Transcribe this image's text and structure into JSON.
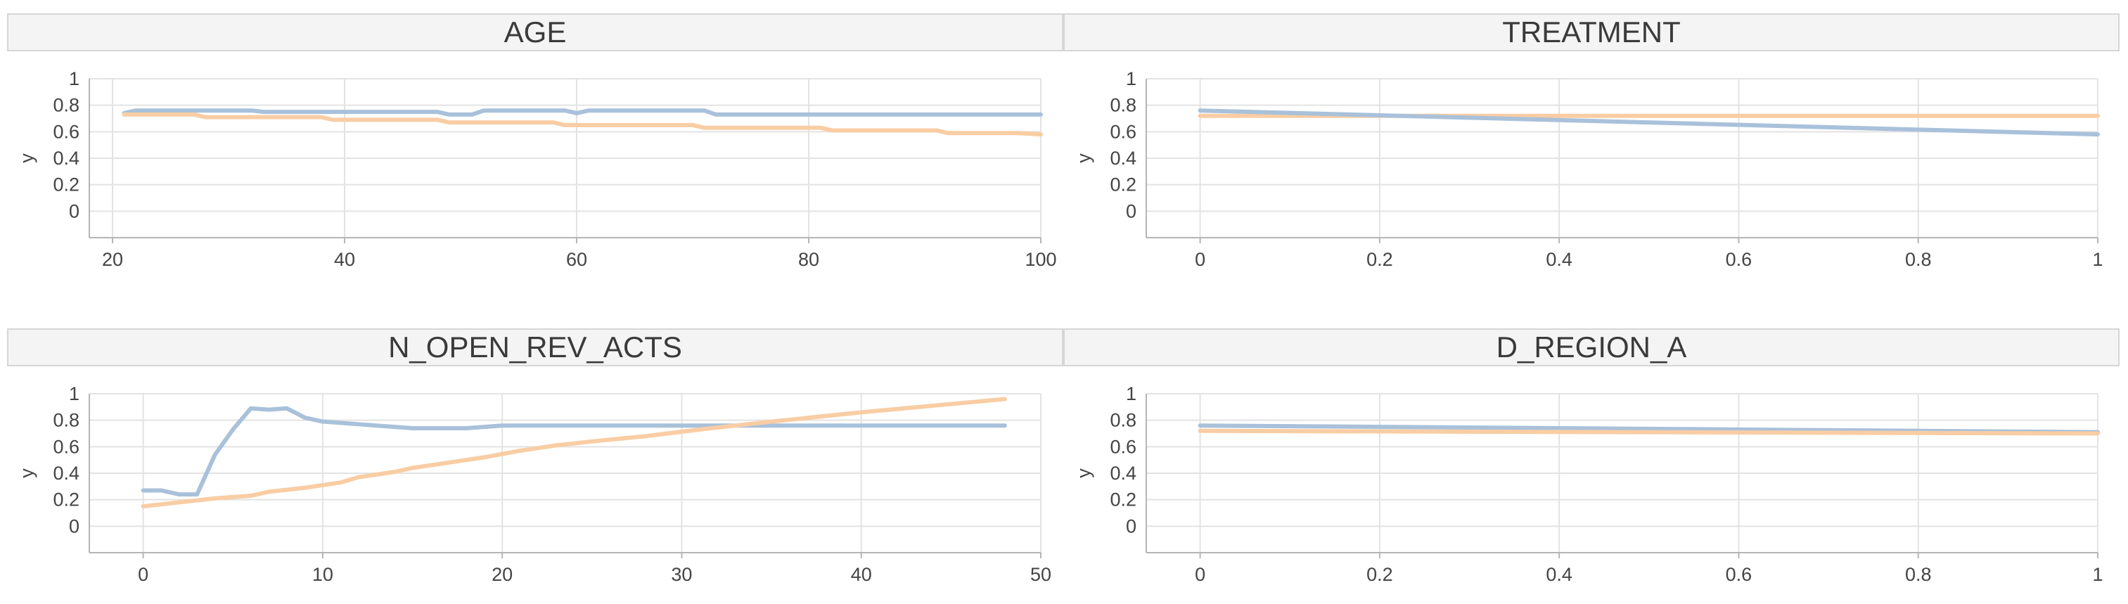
{
  "colors": {
    "series_blue": "#a9c1da",
    "series_orange": "#f9cda4",
    "title_bar_fill": "#f4f4f4",
    "title_bar_stroke": "#d6d6d6",
    "grid": "#e3e3e3",
    "axis": "#b5b5b5"
  },
  "chart_data": [
    {
      "type": "line",
      "title": "AGE",
      "xlabel": "",
      "ylabel": "y",
      "xlim": [
        18,
        100
      ],
      "ylim": [
        -0.2,
        1
      ],
      "xticks": [
        20,
        40,
        60,
        80,
        100
      ],
      "yticks": [
        0,
        0.2,
        0.4,
        0.6,
        0.8,
        1
      ],
      "grid": true,
      "series": [
        {
          "color": "#a9c1da",
          "x": [
            21,
            22,
            32,
            33,
            48,
            49,
            51,
            52,
            59,
            60,
            61,
            71,
            72,
            100
          ],
          "y": [
            0.74,
            0.76,
            0.76,
            0.75,
            0.75,
            0.73,
            0.73,
            0.76,
            0.76,
            0.74,
            0.76,
            0.76,
            0.73,
            0.73
          ]
        },
        {
          "color": "#f9cda4",
          "x": [
            21,
            27,
            28,
            38,
            39,
            48,
            49,
            58,
            59,
            70,
            71,
            81,
            82,
            91,
            92,
            98,
            100
          ],
          "y": [
            0.73,
            0.73,
            0.71,
            0.71,
            0.69,
            0.69,
            0.67,
            0.67,
            0.65,
            0.65,
            0.63,
            0.63,
            0.61,
            0.61,
            0.59,
            0.59,
            0.58
          ]
        }
      ]
    },
    {
      "type": "line",
      "title": "TREATMENT",
      "xlabel": "",
      "ylabel": "y",
      "xlim": [
        -0.06,
        1
      ],
      "ylim": [
        -0.2,
        1
      ],
      "xticks": [
        0,
        0.2,
        0.4,
        0.6,
        0.8,
        1
      ],
      "yticks": [
        0,
        0.2,
        0.4,
        0.6,
        0.8,
        1
      ],
      "grid": true,
      "series": [
        {
          "color": "#f9cda4",
          "x": [
            0,
            1
          ],
          "y": [
            0.72,
            0.72
          ]
        },
        {
          "color": "#a9c1da",
          "x": [
            0,
            1
          ],
          "y": [
            0.76,
            0.58
          ]
        }
      ]
    },
    {
      "type": "line",
      "title": "N_OPEN_REV_ACTS",
      "xlabel": "",
      "ylabel": "y",
      "xlim": [
        -3,
        50
      ],
      "ylim": [
        -0.2,
        1
      ],
      "xticks": [
        0,
        10,
        20,
        30,
        40,
        50
      ],
      "yticks": [
        0,
        0.2,
        0.4,
        0.6,
        0.8,
        1
      ],
      "grid": true,
      "series": [
        {
          "color": "#a9c1da",
          "x": [
            0,
            1,
            2,
            3,
            4,
            5,
            6,
            7,
            8,
            9,
            10,
            11,
            12,
            13,
            14,
            15,
            16,
            18,
            20,
            25,
            30,
            35,
            40,
            48
          ],
          "y": [
            0.27,
            0.27,
            0.24,
            0.24,
            0.54,
            0.73,
            0.89,
            0.88,
            0.89,
            0.82,
            0.79,
            0.78,
            0.77,
            0.76,
            0.75,
            0.74,
            0.74,
            0.74,
            0.76,
            0.76,
            0.76,
            0.76,
            0.76,
            0.76
          ]
        },
        {
          "color": "#f9cda4",
          "x": [
            0,
            2,
            4,
            6,
            7,
            9,
            11,
            12,
            14,
            15,
            17,
            19,
            21,
            23,
            25,
            28,
            31,
            35,
            40,
            44,
            48
          ],
          "y": [
            0.15,
            0.18,
            0.21,
            0.23,
            0.26,
            0.29,
            0.33,
            0.37,
            0.41,
            0.44,
            0.48,
            0.52,
            0.57,
            0.61,
            0.64,
            0.68,
            0.73,
            0.79,
            0.86,
            0.91,
            0.96
          ]
        }
      ]
    },
    {
      "type": "line",
      "title": "D_REGION_A",
      "xlabel": "",
      "ylabel": "y",
      "xlim": [
        -0.06,
        1
      ],
      "ylim": [
        -0.2,
        1
      ],
      "xticks": [
        0,
        0.2,
        0.4,
        0.6,
        0.8,
        1
      ],
      "yticks": [
        0,
        0.2,
        0.4,
        0.6,
        0.8,
        1
      ],
      "grid": true,
      "series": [
        {
          "color": "#a9c1da",
          "x": [
            0,
            1
          ],
          "y": [
            0.76,
            0.71
          ]
        },
        {
          "color": "#f9cda4",
          "x": [
            0,
            1
          ],
          "y": [
            0.72,
            0.7
          ]
        }
      ]
    }
  ]
}
